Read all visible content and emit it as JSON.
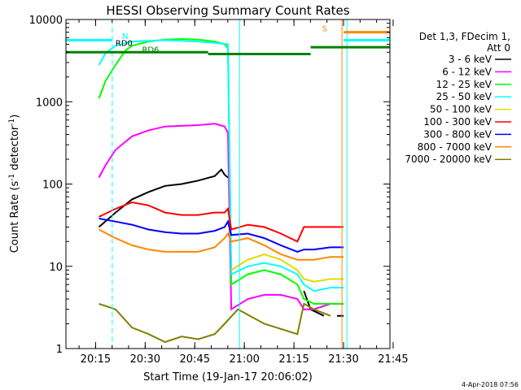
{
  "chart_data": {
    "type": "line",
    "title": "HESSI Observing Summary Count Rates",
    "xlabel": "Start Time (19-Jan-17 20:06:02)",
    "ylabel_main": "Count Rate (s",
    "ylabel_sup1": "-1",
    "ylabel_mid": " detector",
    "ylabel_sup2": "-1",
    "ylabel_end": ")",
    "yscale": "log",
    "ylim": [
      1,
      10000
    ],
    "yticks": [
      "1",
      "10",
      "100",
      "1000",
      "10000"
    ],
    "xlim_minutes": [
      0,
      98
    ],
    "xticks": [
      "20:15",
      "20:30",
      "20:45",
      "21:00",
      "21:15",
      "21:30",
      "21:45"
    ],
    "legend_header": [
      "Det 1,3, FDecim 1,",
      "Att 0"
    ],
    "legend_position": "right",
    "grid": false,
    "series": [
      {
        "name": "3 - 6 keV",
        "color": "#000000",
        "x": [
          10,
          15,
          20,
          25,
          30,
          35,
          40,
          45,
          47,
          48,
          49,
          52,
          60,
          70,
          72,
          74,
          78,
          80,
          82,
          84
        ],
        "y": [
          30,
          45,
          65,
          80,
          95,
          100,
          110,
          125,
          150,
          130,
          120,
          null,
          null,
          null,
          5,
          3,
          2.5,
          null,
          2.5,
          2.5
        ]
      },
      {
        "name": "6 - 12 keV",
        "color": "#ff00ff",
        "x": [
          10,
          12,
          15,
          20,
          25,
          30,
          35,
          40,
          45,
          48,
          49,
          50,
          55,
          60,
          65,
          70,
          72,
          75,
          80,
          84
        ],
        "y": [
          120,
          170,
          260,
          380,
          450,
          500,
          510,
          520,
          540,
          500,
          420,
          3,
          4,
          4.5,
          4.5,
          4,
          3,
          3,
          3.5,
          3.5
        ]
      },
      {
        "name": "12 - 25 keV",
        "color": "#00ff00",
        "x": [
          10,
          12,
          15,
          18,
          20,
          25,
          30,
          35,
          40,
          45,
          48,
          49,
          50,
          55,
          60,
          65,
          70,
          72,
          75,
          80,
          84
        ],
        "y": [
          1100,
          1800,
          2800,
          4200,
          4800,
          5400,
          5700,
          5800,
          5700,
          5400,
          5000,
          4500,
          6,
          8,
          9,
          8,
          6,
          4,
          3.5,
          3.5,
          3.5
        ]
      },
      {
        "name": "25 - 50 keV",
        "color": "#00ffff",
        "x": [
          10,
          12,
          15,
          20,
          25,
          30,
          35,
          40,
          45,
          49,
          50,
          55,
          60,
          65,
          70,
          72,
          75,
          80,
          84
        ],
        "y": [
          2800,
          3900,
          4800,
          5400,
          5500,
          5600,
          5500,
          5400,
          5200,
          5000,
          8,
          10,
          11,
          10,
          8,
          6,
          5,
          5.5,
          5.5
        ]
      },
      {
        "name": "50 - 100 keV",
        "color": "#dddd00",
        "x": [
          50,
          55,
          60,
          65,
          70,
          72,
          75,
          80,
          84
        ],
        "y": [
          9,
          12,
          14,
          12,
          9,
          7,
          6.5,
          7,
          7
        ]
      },
      {
        "name": "100 - 300 keV",
        "color": "#ff0000",
        "x": [
          10,
          15,
          20,
          25,
          30,
          35,
          40,
          45,
          48,
          49,
          50,
          55,
          60,
          65,
          70,
          72,
          75,
          80,
          84
        ],
        "y": [
          40,
          50,
          60,
          55,
          45,
          42,
          42,
          45,
          45,
          50,
          28,
          32,
          30,
          25,
          20,
          30,
          30,
          30,
          30
        ]
      },
      {
        "name": "300 - 800 keV",
        "color": "#0000ff",
        "x": [
          10,
          15,
          20,
          25,
          30,
          35,
          40,
          45,
          48,
          49,
          50,
          55,
          60,
          65,
          70,
          72,
          75,
          80,
          84
        ],
        "y": [
          38,
          35,
          32,
          28,
          26,
          25,
          25,
          27,
          30,
          35,
          24,
          25,
          22,
          18,
          15,
          16,
          16,
          17,
          17
        ]
      },
      {
        "name": "800 - 7000 keV",
        "color": "#ff8800",
        "x": [
          10,
          15,
          20,
          25,
          30,
          35,
          40,
          45,
          48,
          49,
          50,
          55,
          60,
          65,
          70,
          72,
          75,
          80,
          84
        ],
        "y": [
          28,
          22,
          18,
          16,
          15,
          15,
          15,
          17,
          22,
          25,
          20,
          22,
          18,
          14,
          12,
          12,
          12,
          13,
          13
        ]
      },
      {
        "name": "7000 - 20000 keV",
        "color": "#808000",
        "x": [
          10,
          15,
          20,
          25,
          30,
          35,
          40,
          45,
          48,
          52,
          60,
          70,
          72,
          75,
          80
        ],
        "y": [
          3.5,
          3,
          1.8,
          1.5,
          1.2,
          1.4,
          1.3,
          1.5,
          2,
          3,
          2,
          1.5,
          3.5,
          3,
          2.5
        ]
      }
    ],
    "annotations": [
      {
        "text": "N",
        "color": "#00ffff",
        "x": 17,
        "y": 5800
      },
      {
        "text": "RD0",
        "color": "#000000",
        "x": 15,
        "y": 4800
      },
      {
        "text": "RD6",
        "color": "#008000",
        "x": 23,
        "y": 4000
      },
      {
        "text": "S",
        "color": "#ff8800",
        "x": 77.5,
        "y": 7200
      }
    ],
    "flag_bars": [
      {
        "color": "#00ffff",
        "x1": 0,
        "x2": 14,
        "y": 5600
      },
      {
        "color": "#00ffff",
        "x1": 84,
        "x2": 98,
        "y": 5600
      },
      {
        "color": "#008000",
        "x1": 0,
        "x2": 43,
        "y": 4000
      },
      {
        "color": "#008000",
        "x1": 43,
        "x2": 74,
        "y": 3800
      },
      {
        "color": "#008000",
        "x1": 74,
        "x2": 98,
        "y": 4600
      },
      {
        "color": "#ff8800",
        "x1": 84,
        "x2": 98,
        "y": 7000
      }
    ],
    "vlines": [
      {
        "color": "#00ffff",
        "x": 0,
        "style": "solid"
      },
      {
        "color": "#00ffff",
        "x": 14,
        "style": "dashed"
      },
      {
        "color": "#00ffff",
        "x": 52.5,
        "style": "solid"
      },
      {
        "color": "#ff8800",
        "x": 83.5,
        "style": "solid"
      },
      {
        "color": "#00ffff",
        "x": 85,
        "style": "solid"
      },
      {
        "color": "#ff8800",
        "x": 98,
        "style": "dashed"
      }
    ]
  },
  "timestamp": "4-Apr-2018 07:56"
}
